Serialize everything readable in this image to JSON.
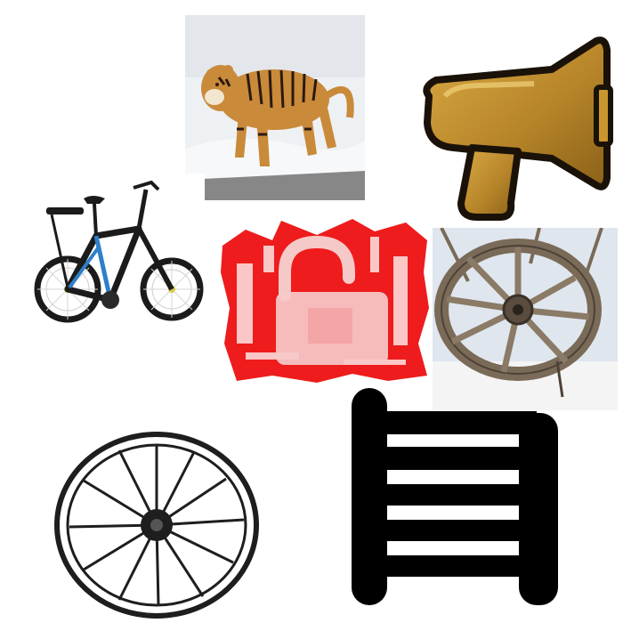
{
  "canvas": {
    "background": "#ffffff"
  },
  "images": [
    {
      "id": "tiger",
      "subject": "tiger-photo",
      "colors": {
        "snow": "#f2f4f6",
        "fur": "#c98a3a",
        "stripe": "#2a1a10"
      }
    },
    {
      "id": "megaphone",
      "subject": "megaphone-icon",
      "colors": {
        "gold": "#b8862a",
        "outline": "#1a1208"
      }
    },
    {
      "id": "bicycle",
      "subject": "bicycle-photo",
      "colors": {
        "frame": "#1b1b1b",
        "accent": "#2f7fc9"
      }
    },
    {
      "id": "unlock",
      "subject": "unlocked-padlock-icon",
      "colors": {
        "red": "#ee1c1c",
        "white": "#ffffff"
      }
    },
    {
      "id": "wooden-wheel",
      "subject": "wooden-cart-wheel-photo",
      "colors": {
        "wood": "#7a6a58",
        "sky": "#dfe6ee"
      }
    },
    {
      "id": "wheel-sketch",
      "subject": "wagon-wheel-drawing",
      "colors": {
        "ink": "#1e1e1e"
      }
    },
    {
      "id": "ladder",
      "subject": "ladder-icon",
      "colors": {
        "black": "#000000"
      }
    }
  ]
}
